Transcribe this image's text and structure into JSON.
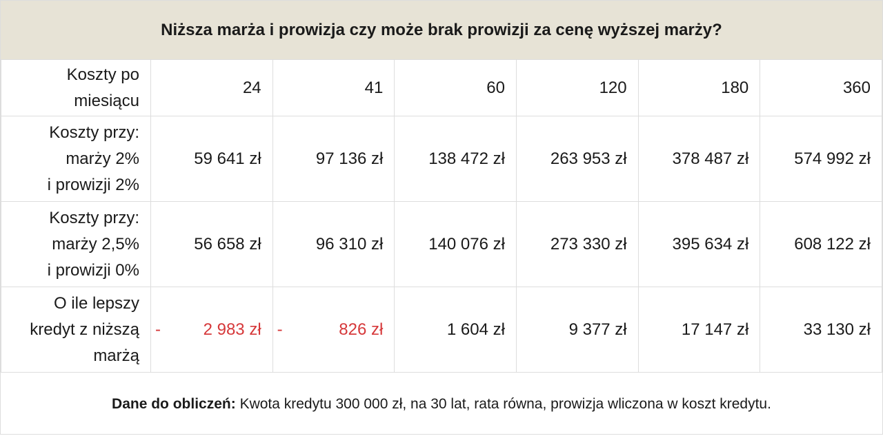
{
  "header": {
    "title": "Niższa marża i prowizja czy może brak prowizji za cenę wyższej marży?"
  },
  "table": {
    "rows": [
      {
        "label": [
          "Koszty po",
          "miesiącu"
        ],
        "cells": [
          "24",
          "41",
          "60",
          "120",
          "180",
          "360"
        ]
      },
      {
        "label": [
          "Koszty przy:",
          "marży 2%",
          "i prowizji 2%"
        ],
        "cells": [
          "59 641 zł",
          "97 136 zł",
          "138 472 zł",
          "263 953 zł",
          "378 487 zł",
          "574 992 zł"
        ]
      },
      {
        "label": [
          "Koszty przy:",
          "marży 2,5%",
          "i prowizji 0%"
        ],
        "cells": [
          "56 658 zł",
          "96 310 zł",
          "140 076 zł",
          "273 330 zł",
          "395 634 zł",
          "608 122 zł"
        ]
      },
      {
        "label": [
          "O ile lepszy",
          "kredyt z niższą",
          "marżą"
        ],
        "cells": [
          {
            "sign": "-",
            "text": "2 983 zł"
          },
          {
            "sign": "-",
            "text": "826 zł"
          },
          "1 604 zł",
          "9 377 zł",
          "17 147 zł",
          "33 130 zł"
        ]
      }
    ]
  },
  "footer": {
    "bold": "Dane do obliczeń:",
    "text": "Kwota kredytu 300 000 zł, na 30 lat, rata równa, prowizja wliczona w koszt kredytu."
  }
}
